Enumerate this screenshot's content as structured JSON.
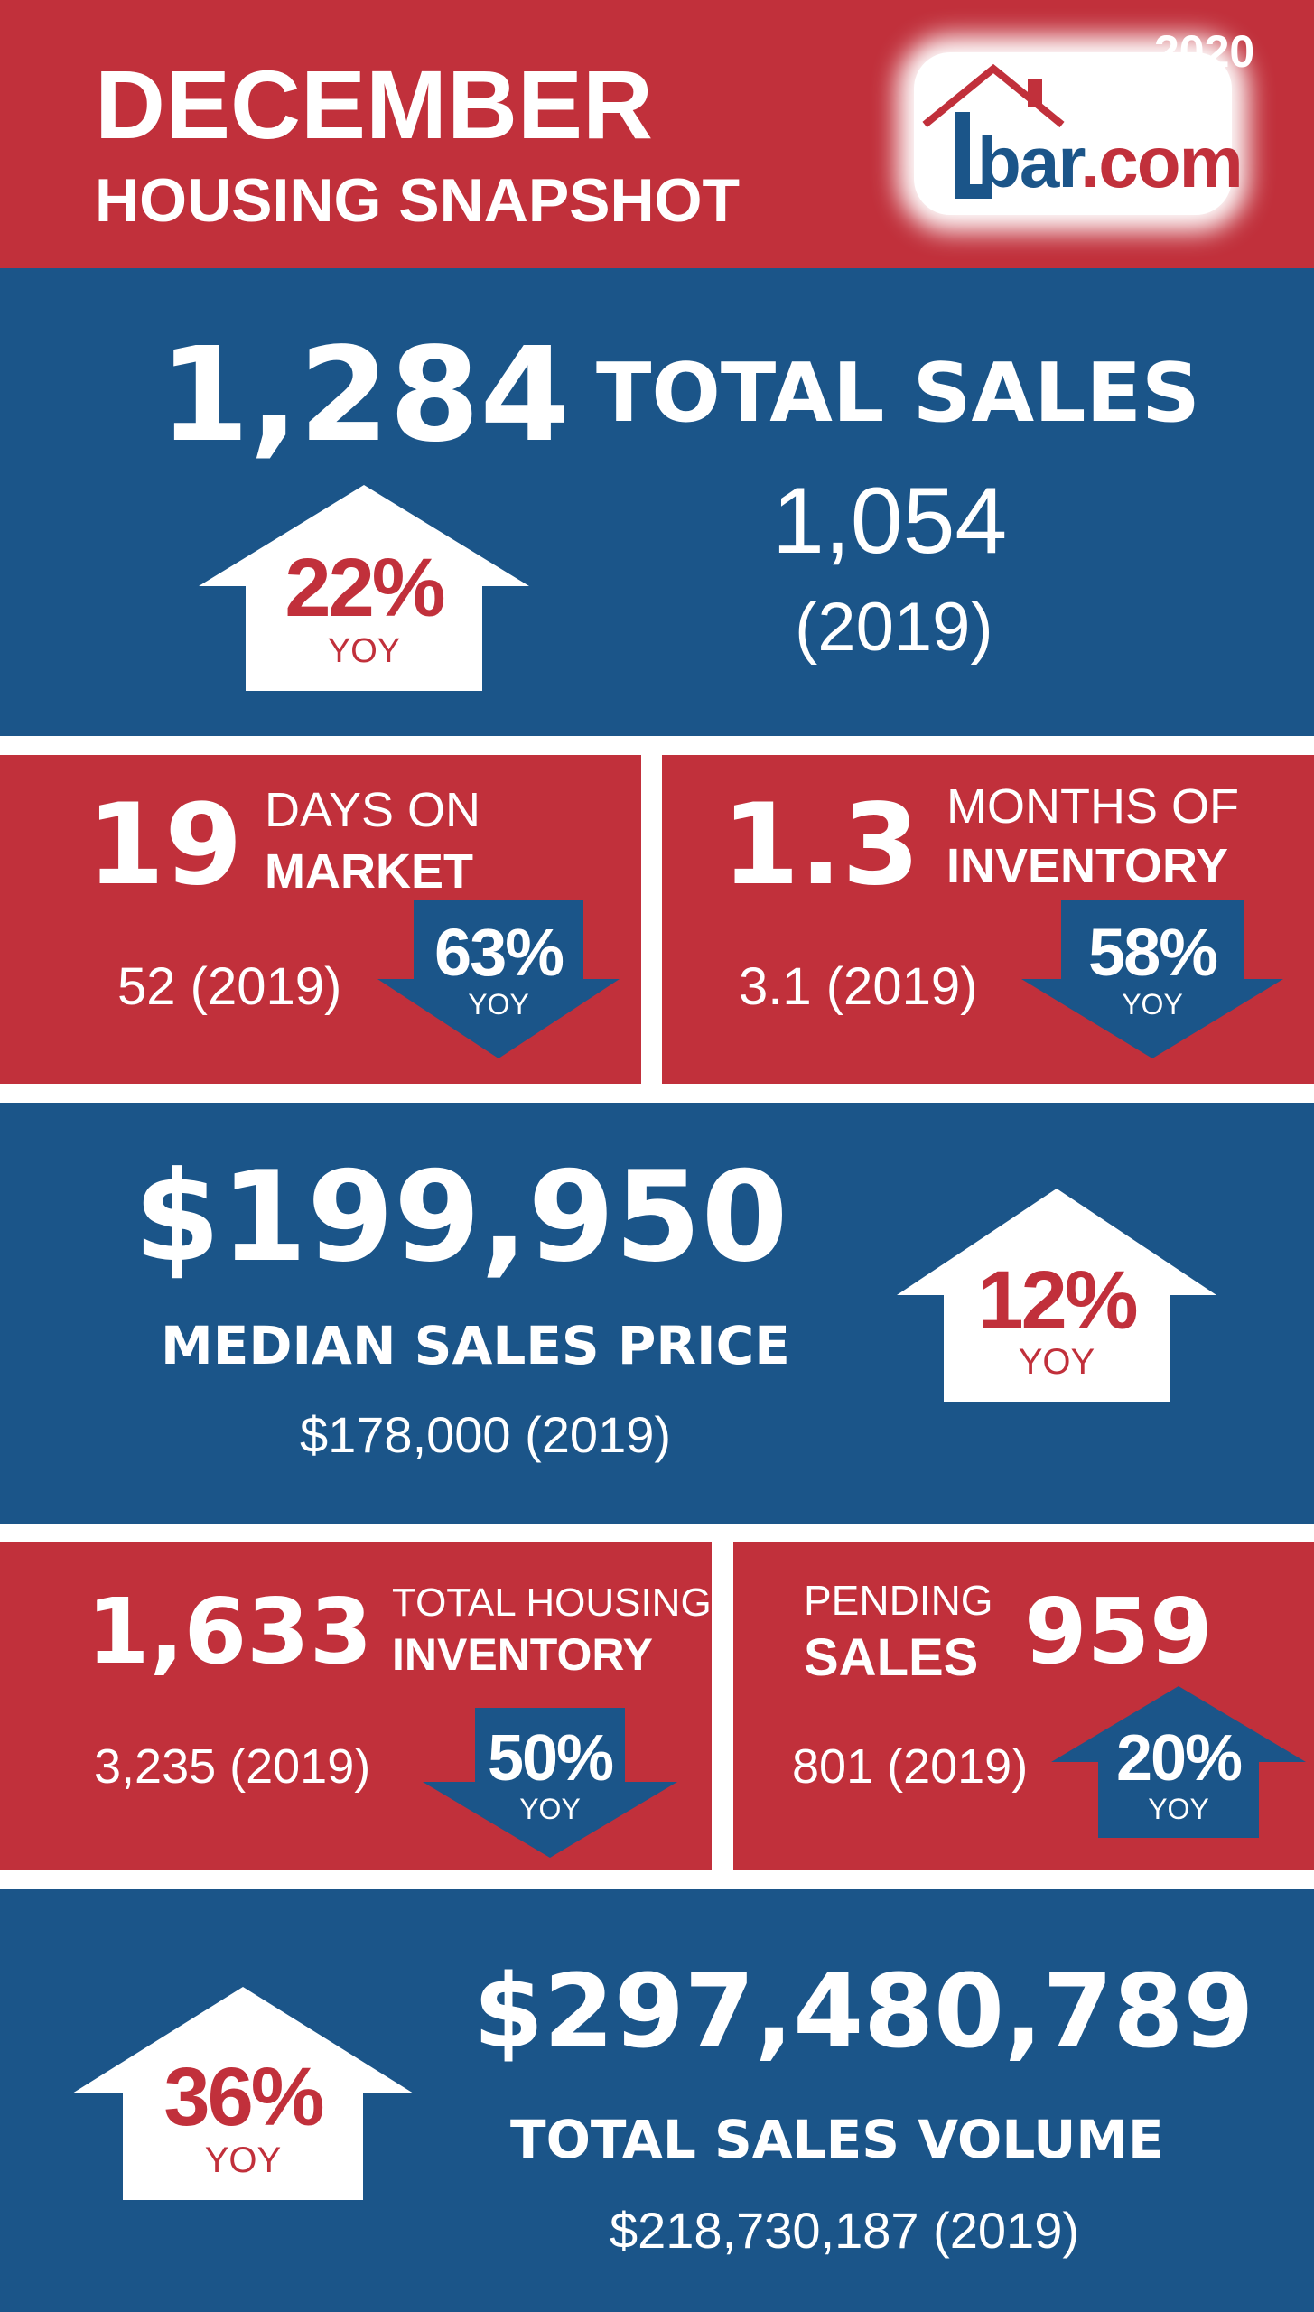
{
  "header": {
    "title": "DECEMBER",
    "subtitle": "HOUSING SNAPSHOT",
    "year": "2020",
    "logo_text_prefix": "bar",
    "logo_text_suffix": ".com"
  },
  "total_sales": {
    "value": "1,284",
    "label": "TOTAL SALES",
    "prior_value": "1,054",
    "prior_year": "(2019)",
    "change": "22%",
    "change_label": "YOY",
    "direction": "up"
  },
  "days_on_market": {
    "value": "19",
    "label_line1": "DAYS ON",
    "label_line2": "MARKET",
    "prior": "52 (2019)",
    "change": "63%",
    "change_label": "YOY",
    "direction": "down"
  },
  "months_inventory": {
    "value": "1.3",
    "label_line1": "MONTHS OF",
    "label_line2": "INVENTORY",
    "prior": "3.1 (2019)",
    "change": "58%",
    "change_label": "YOY",
    "direction": "down"
  },
  "median_price": {
    "value": "$199,950",
    "label": "MEDIAN SALES PRICE",
    "prior": "$178,000 (2019)",
    "change": "12%",
    "change_label": "YOY",
    "direction": "up"
  },
  "housing_inventory": {
    "value": "1,633",
    "label_line1": "TOTAL HOUSING",
    "label_line2": "INVENTORY",
    "prior": "3,235 (2019)",
    "change": "50%",
    "change_label": "YOY",
    "direction": "down"
  },
  "pending_sales": {
    "value": "959",
    "label_line1": "PENDING",
    "label_line2": "SALES",
    "prior": "801 (2019)",
    "change": "20%",
    "change_label": "YOY",
    "direction": "up"
  },
  "sales_volume": {
    "value": "$297,480,789",
    "label": "TOTAL SALES VOLUME",
    "prior": "$218,730,187 (2019)",
    "change": "36%",
    "change_label": "YOY",
    "direction": "up"
  },
  "colors": {
    "red": "#c1303b",
    "blue": "#1b5589",
    "white": "#ffffff"
  },
  "icons": [
    "house-logo-icon",
    "up-arrow-icon",
    "down-arrow-icon"
  ]
}
